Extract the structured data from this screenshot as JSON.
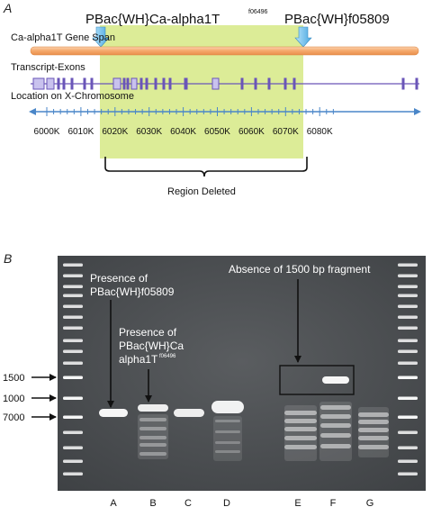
{
  "panel_a": {
    "letter": "A",
    "insert_left_label": "PBac{WH}Ca-alpha1T",
    "insert_left_sup": "f06496",
    "insert_right_label": "PBac{WH}f05809",
    "gene_span_label": "Ca-alpha1T Gene Span",
    "transcript_label": "Transcript-Exons",
    "location_label": "Location on X-Chromosome",
    "axis_ticks": [
      "6000K",
      "6010K",
      "6020K",
      "6030K",
      "6040K",
      "6050K",
      "6060K",
      "6070K",
      "6080K"
    ],
    "region_label": "Region Deleted",
    "colors": {
      "highlight": "#d8ea8c",
      "gene_span": "#f5a86a",
      "exon": "#6a55b8",
      "axis": "#4a86c8",
      "arrow": "#5ab4e6"
    }
  },
  "panel_b": {
    "letter": "B",
    "annotation_absence": "Absence of 1500 bp fragment",
    "annotation_presence_1": [
      "Presence of",
      "PBac{WH}f05809"
    ],
    "annotation_presence_2": [
      "Presence of",
      "PBac{WH}Ca",
      "alpha1T"
    ],
    "annotation_presence_2_sup": "f06496",
    "ladder_labels": [
      "1500",
      "1000",
      "7000"
    ],
    "lanes": [
      "A",
      "B",
      "C",
      "D",
      "E",
      "F",
      "G"
    ]
  }
}
